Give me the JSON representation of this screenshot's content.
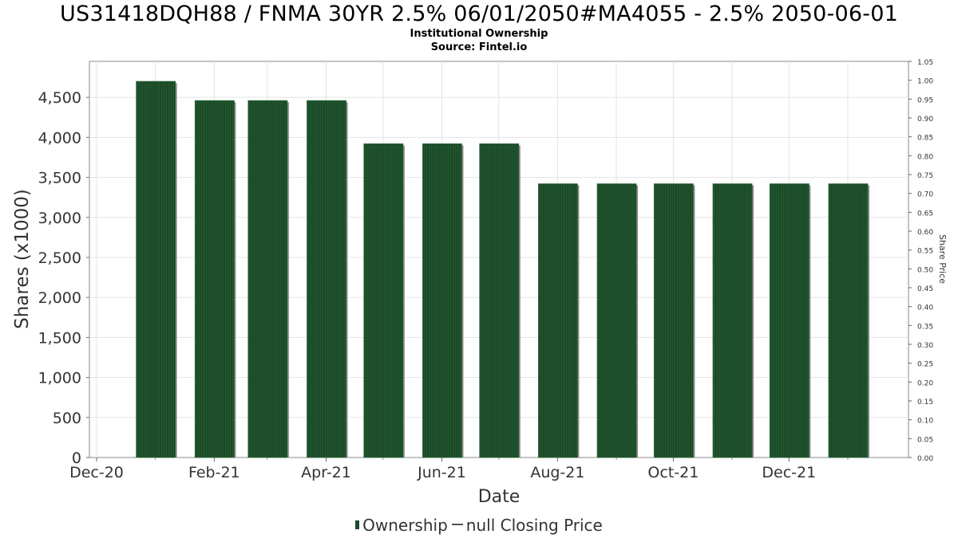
{
  "chart_data": {
    "type": "bar",
    "title": "US31418DQH88 / FNMA 30YR 2.5% 06/01/2050#MA4055 - 2.5% 2050-06-01",
    "subtitle": "Institutional Ownership",
    "source": "Source: Fintel.io",
    "xlabel": "Date",
    "ylabel": "Shares (x1000)",
    "y2label": "Share Price",
    "x_tick_labels": [
      "Dec-20",
      "Feb-21",
      "Apr-21",
      "Jun-21",
      "Aug-21",
      "Oct-21",
      "Dec-21"
    ],
    "y_ticks": [
      "0",
      "500",
      "1,000",
      "1,500",
      "2,000",
      "2,500",
      "3,000",
      "3,500",
      "4,000",
      "4,500"
    ],
    "y2_ticks": [
      "0.00",
      "0.05",
      "0.10",
      "0.15",
      "0.20",
      "0.25",
      "0.30",
      "0.35",
      "0.40",
      "0.45",
      "0.50",
      "0.55",
      "0.60",
      "0.65",
      "0.70",
      "0.75",
      "0.80",
      "0.85",
      "0.90",
      "0.95",
      "1.00",
      "1.05"
    ],
    "ylim": [
      0,
      4950
    ],
    "y2lim": [
      0,
      1.05
    ],
    "series": [
      {
        "name": "Ownership",
        "dates": [
          "2021-01-01",
          "2021-02-01",
          "2021-03-01",
          "2021-04-01",
          "2021-05-01",
          "2021-06-01",
          "2021-07-01",
          "2021-08-01",
          "2021-09-01",
          "2021-10-01",
          "2021-11-01",
          "2021-12-01",
          "2022-01-01"
        ],
        "values": [
          4700,
          4460,
          4460,
          4460,
          3920,
          3920,
          3920,
          3420,
          3420,
          3420,
          3420,
          3420,
          3420
        ]
      }
    ],
    "legend": [
      "Ownership",
      "null Closing Price"
    ],
    "legend_position": "bottom",
    "grid": true,
    "colors": {
      "bar": "#1b4a28",
      "bar_shadow": "#8a8a8a",
      "grid": "#e3e3e3",
      "axis": "#888888"
    }
  }
}
